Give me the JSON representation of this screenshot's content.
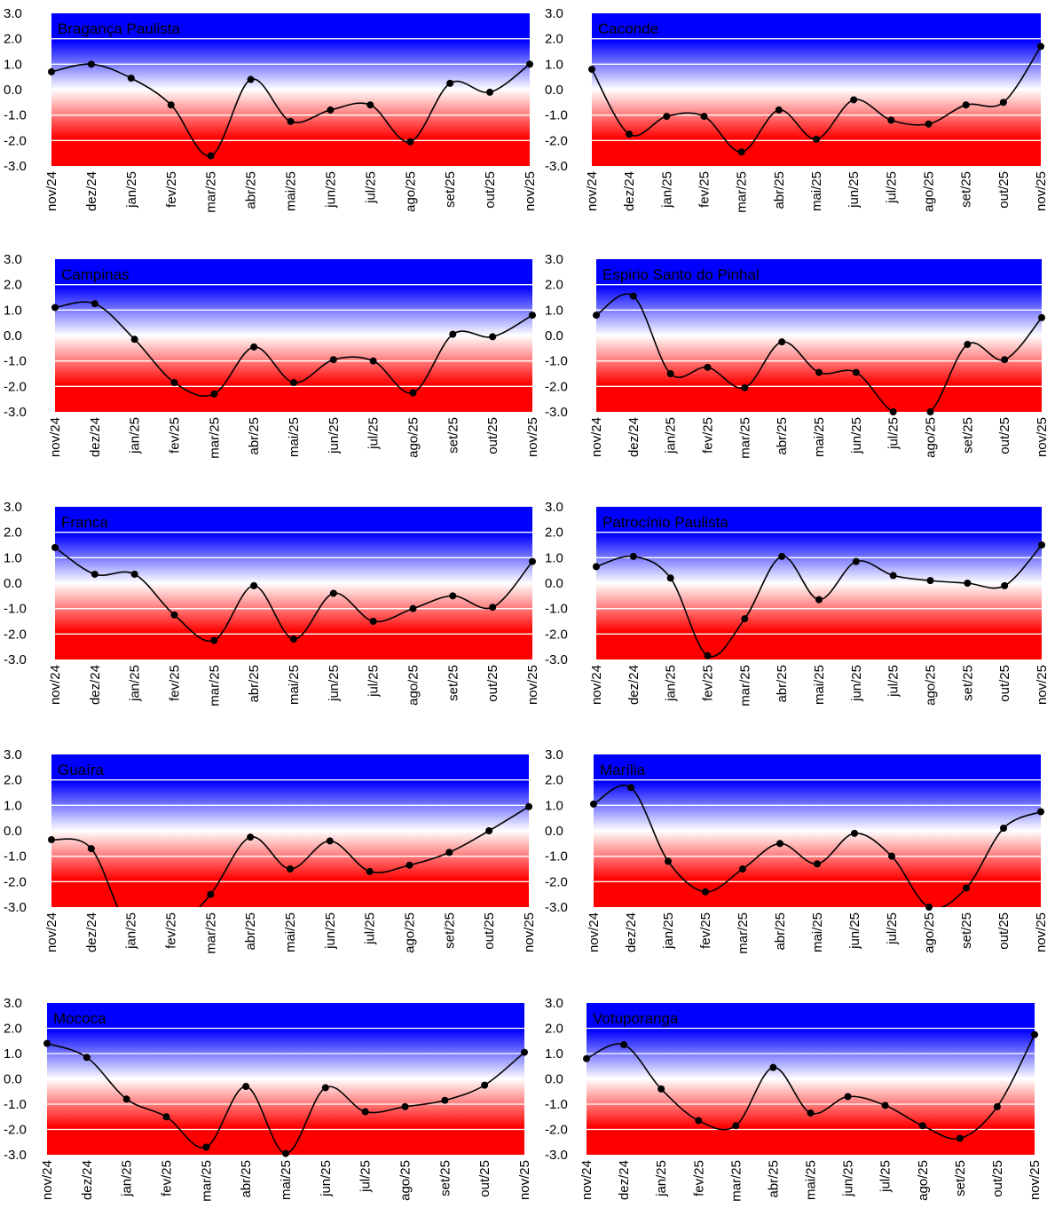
{
  "chart_data": [
    {
      "type": "line",
      "title": "Bragança Paulista",
      "categories": [
        "nov/24",
        "dez/24",
        "jan/25",
        "fev/25",
        "mar/25",
        "abr/25",
        "mai/25",
        "jun/25",
        "jul/25",
        "ago/25",
        "set/25",
        "out/25",
        "nov/25"
      ],
      "values": [
        0.7,
        1.0,
        0.45,
        -0.6,
        -2.6,
        0.4,
        -1.25,
        -0.8,
        -0.6,
        -2.05,
        0.25,
        -0.1,
        1.0
      ],
      "ylim": [
        -3,
        3
      ],
      "yticks": [
        "3.0",
        "2.0",
        "1.0",
        "0.0",
        "-1.0",
        "-2.0",
        "-3.0"
      ],
      "grid": true,
      "background": {
        "positive": "#0000ff",
        "negative": "#ff0000",
        "zero": "#ffffff"
      },
      "line_color": "#000000"
    },
    {
      "type": "line",
      "title": "Caconde",
      "categories": [
        "nov/24",
        "dez/24",
        "jan/25",
        "fev/25",
        "mar/25",
        "abr/25",
        "mai/25",
        "jun/25",
        "jul/25",
        "ago/25",
        "set/25",
        "out/25",
        "nov/25"
      ],
      "values": [
        0.8,
        -1.75,
        -1.05,
        -1.05,
        -2.45,
        -0.8,
        -1.95,
        -0.4,
        -1.2,
        -1.35,
        -0.6,
        -0.5,
        1.7
      ],
      "ylim": [
        -3,
        3
      ],
      "yticks": [
        "3.0",
        "2.0",
        "1.0",
        "0.0",
        "-1.0",
        "-2.0",
        "-3.0"
      ],
      "grid": true,
      "background": {
        "positive": "#0000ff",
        "negative": "#ff0000",
        "zero": "#ffffff"
      },
      "line_color": "#000000"
    },
    {
      "type": "line",
      "title": "Campinas",
      "categories": [
        "nov/24",
        "dez/24",
        "jan/25",
        "fev/25",
        "mar/25",
        "abr/25",
        "mai/25",
        "jun/25",
        "jul/25",
        "ago/25",
        "set/25",
        "out/25",
        "nov/25"
      ],
      "values": [
        1.1,
        1.25,
        -0.15,
        -1.85,
        -2.3,
        -0.45,
        -1.85,
        -0.95,
        -1.0,
        -2.25,
        0.05,
        -0.05,
        0.8
      ],
      "ylim": [
        -3,
        3
      ],
      "yticks": [
        "3.0",
        "2.0",
        "1.0",
        "0.0",
        "-1.0",
        "-2.0",
        "-3.0"
      ],
      "grid": true,
      "background": {
        "positive": "#0000ff",
        "negative": "#ff0000",
        "zero": "#ffffff"
      },
      "line_color": "#000000"
    },
    {
      "type": "line",
      "title": "Espirio Santo do Pinhal",
      "categories": [
        "nov/24",
        "dez/24",
        "jan/25",
        "fev/25",
        "mar/25",
        "abr/25",
        "mai/25",
        "jun/25",
        "jul/25",
        "ago/25",
        "set/25",
        "out/25",
        "nov/25"
      ],
      "values": [
        0.8,
        1.55,
        -1.5,
        -1.25,
        -2.05,
        -0.25,
        -1.45,
        -1.45,
        -3.0,
        -3.0,
        -0.35,
        -0.95,
        0.7
      ],
      "ylim": [
        -3,
        3
      ],
      "yticks": [
        "3.0",
        "2.0",
        "1.0",
        "0.0",
        "-1.0",
        "-2.0",
        "-3.0"
      ],
      "grid": true,
      "background": {
        "positive": "#0000ff",
        "negative": "#ff0000",
        "zero": "#ffffff"
      },
      "line_color": "#000000"
    },
    {
      "type": "line",
      "title": "Franca",
      "categories": [
        "nov/24",
        "dez/24",
        "jan/25",
        "fev/25",
        "mar/25",
        "abr/25",
        "mai/25",
        "jun/25",
        "jul/25",
        "ago/25",
        "set/25",
        "out/25",
        "nov/25"
      ],
      "values": [
        1.4,
        0.35,
        0.35,
        -1.25,
        -2.25,
        -0.1,
        -2.2,
        -0.4,
        -1.5,
        -1.0,
        -0.5,
        -0.95,
        0.85
      ],
      "ylim": [
        -3,
        3
      ],
      "yticks": [
        "3.0",
        "2.0",
        "1.0",
        "0.0",
        "-1.0",
        "-2.0",
        "-3.0"
      ],
      "grid": true,
      "background": {
        "positive": "#0000ff",
        "negative": "#ff0000",
        "zero": "#ffffff"
      },
      "line_color": "#000000"
    },
    {
      "type": "line",
      "title": "Patrocínio Paulista",
      "categories": [
        "nov/24",
        "dez/24",
        "jan/25",
        "fev/25",
        "mar/25",
        "abr/25",
        "mai/25",
        "jun/25",
        "jul/25",
        "ago/25",
        "set/25",
        "out/25",
        "nov/25"
      ],
      "values": [
        0.65,
        1.05,
        0.2,
        -2.85,
        -1.4,
        1.05,
        -0.65,
        0.85,
        0.3,
        0.1,
        0.0,
        -0.1,
        1.5
      ],
      "ylim": [
        -3,
        3
      ],
      "yticks": [
        "3.0",
        "2.0",
        "1.0",
        "0.0",
        "-1.0",
        "-2.0",
        "-3.0"
      ],
      "grid": true,
      "background": {
        "positive": "#0000ff",
        "negative": "#ff0000",
        "zero": "#ffffff"
      },
      "line_color": "#000000"
    },
    {
      "type": "line",
      "title": "Guaíra",
      "categories": [
        "nov/24",
        "dez/24",
        "jan/25",
        "fev/25",
        "mar/25",
        "abr/25",
        "mai/25",
        "jun/25",
        "jul/25",
        "ago/25",
        "set/25",
        "out/25",
        "nov/25"
      ],
      "values": [
        -0.35,
        -0.7,
        -4.0,
        -4.0,
        -2.5,
        -0.25,
        -1.5,
        -0.4,
        -1.6,
        -1.35,
        -0.85,
        0.0,
        0.95
      ],
      "ylim": [
        -3,
        3
      ],
      "yticks": [
        "3.0",
        "2.0",
        "1.0",
        "0.0",
        "-1.0",
        "-2.0",
        "-3.0"
      ],
      "grid": true,
      "background": {
        "positive": "#0000ff",
        "negative": "#ff0000",
        "zero": "#ffffff"
      },
      "line_color": "#000000"
    },
    {
      "type": "line",
      "title": "Marília",
      "categories": [
        "nov/24",
        "dez/24",
        "jan/25",
        "fev/25",
        "mar/25",
        "abr/25",
        "mai/25",
        "jun/25",
        "jul/25",
        "ago/25",
        "set/25",
        "out/25",
        "nov/25"
      ],
      "values": [
        1.05,
        1.7,
        -1.2,
        -2.4,
        -1.5,
        -0.5,
        -1.3,
        -0.1,
        -1.0,
        -3.0,
        -2.25,
        0.1,
        0.75
      ],
      "ylim": [
        -3,
        3
      ],
      "yticks": [
        "3.0",
        "2.0",
        "1.0",
        "0.0",
        "-1.0",
        "-2.0",
        "-3.0"
      ],
      "grid": true,
      "background": {
        "positive": "#0000ff",
        "negative": "#ff0000",
        "zero": "#ffffff"
      },
      "line_color": "#000000"
    },
    {
      "type": "line",
      "title": "Mococa",
      "categories": [
        "nov/24",
        "dez/24",
        "jan/25",
        "fev/25",
        "mar/25",
        "abr/25",
        "mai/25",
        "jun/25",
        "jul/25",
        "ago/25",
        "set/25",
        "out/25",
        "nov/25"
      ],
      "values": [
        1.4,
        0.85,
        -0.8,
        -1.5,
        -2.7,
        -0.3,
        -2.95,
        -0.35,
        -1.3,
        -1.1,
        -0.85,
        -0.25,
        1.05
      ],
      "ylim": [
        -3,
        3
      ],
      "yticks": [
        "3.0",
        "2.0",
        "1.0",
        "0.0",
        "-1.0",
        "-2.0",
        "-3.0"
      ],
      "grid": true,
      "background": {
        "positive": "#0000ff",
        "negative": "#ff0000",
        "zero": "#ffffff"
      },
      "line_color": "#000000"
    },
    {
      "type": "line",
      "title": "Votuporanga",
      "categories": [
        "nov/24",
        "dez/24",
        "jan/25",
        "fev/25",
        "mar/25",
        "abr/25",
        "mai/25",
        "jun/25",
        "jul/25",
        "ago/25",
        "set/25",
        "out/25",
        "nov/25"
      ],
      "values": [
        0.8,
        1.35,
        -0.4,
        -1.65,
        -1.85,
        0.45,
        -1.35,
        -0.7,
        -1.05,
        -1.85,
        -2.35,
        -1.1,
        1.75
      ],
      "ylim": [
        -3,
        3
      ],
      "yticks": [
        "3.0",
        "2.0",
        "1.0",
        "0.0",
        "-1.0",
        "-2.0",
        "-3.0"
      ],
      "grid": true,
      "background": {
        "positive": "#0000ff",
        "negative": "#ff0000",
        "zero": "#ffffff"
      },
      "line_color": "#000000"
    }
  ]
}
